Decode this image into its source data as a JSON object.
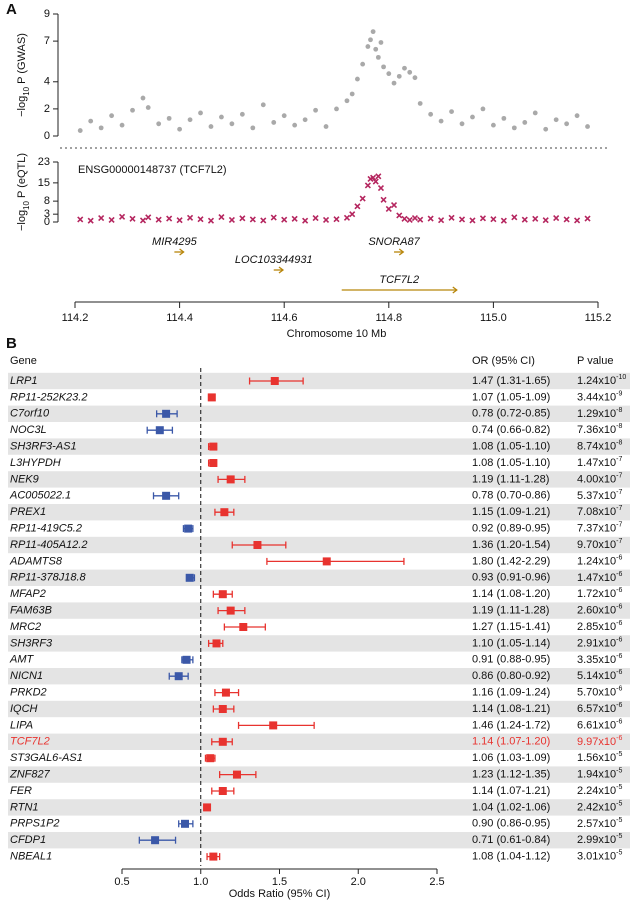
{
  "panel_a": {
    "label": "A",
    "gwas": {
      "type": "scatter",
      "ylabel_pre": "−log",
      "ylabel_sub": "10",
      "ylabel_post": " P (GWAS)",
      "color": "#a9a9a9",
      "ylim": [
        0,
        9
      ],
      "yticks": [
        0,
        2,
        4,
        7,
        9
      ],
      "x": [
        114.21,
        114.23,
        114.25,
        114.27,
        114.29,
        114.31,
        114.33,
        114.34,
        114.36,
        114.38,
        114.4,
        114.42,
        114.44,
        114.46,
        114.48,
        114.5,
        114.52,
        114.54,
        114.56,
        114.58,
        114.6,
        114.62,
        114.64,
        114.66,
        114.68,
        114.7,
        114.72,
        114.73,
        114.74,
        114.75,
        114.76,
        114.765,
        114.77,
        114.775,
        114.78,
        114.785,
        114.79,
        114.8,
        114.81,
        114.82,
        114.83,
        114.84,
        114.85,
        114.86,
        114.88,
        114.9,
        114.92,
        114.94,
        114.96,
        114.98,
        115.0,
        115.02,
        115.04,
        115.06,
        115.08,
        115.1,
        115.12,
        115.14,
        115.16,
        115.18
      ],
      "values": [
        0.4,
        1.1,
        0.6,
        1.5,
        0.8,
        1.9,
        2.8,
        2.1,
        0.9,
        1.3,
        0.5,
        1.2,
        1.7,
        0.7,
        1.4,
        0.9,
        1.6,
        0.6,
        2.3,
        1.0,
        1.5,
        0.8,
        1.2,
        1.9,
        0.7,
        2.0,
        2.6,
        3.1,
        4.2,
        5.3,
        6.6,
        7.1,
        7.7,
        6.4,
        5.8,
        6.9,
        5.1,
        4.6,
        3.9,
        4.4,
        5.0,
        4.7,
        4.3,
        2.4,
        1.6,
        1.1,
        1.8,
        0.9,
        1.4,
        2.0,
        0.8,
        1.3,
        0.6,
        1.0,
        1.7,
        0.5,
        1.2,
        0.9,
        1.5,
        0.7
      ]
    },
    "eqtl": {
      "type": "scatter",
      "title": "ENSG00000148737 (TCF7L2)",
      "ylabel_pre": "−log",
      "ylabel_sub": "10",
      "ylabel_post": " P (eQTL)",
      "color": "#b5265f",
      "ylim": [
        0,
        23
      ],
      "yticks": [
        0,
        3,
        8,
        15,
        23
      ],
      "x": [
        114.21,
        114.23,
        114.25,
        114.27,
        114.29,
        114.31,
        114.33,
        114.34,
        114.36,
        114.38,
        114.4,
        114.42,
        114.44,
        114.46,
        114.48,
        114.5,
        114.52,
        114.54,
        114.56,
        114.58,
        114.6,
        114.62,
        114.64,
        114.66,
        114.68,
        114.7,
        114.72,
        114.73,
        114.74,
        114.75,
        114.76,
        114.765,
        114.77,
        114.775,
        114.78,
        114.785,
        114.79,
        114.8,
        114.81,
        114.82,
        114.83,
        114.84,
        114.85,
        114.86,
        114.88,
        114.9,
        114.92,
        114.94,
        114.96,
        114.98,
        115.0,
        115.02,
        115.04,
        115.06,
        115.08,
        115.1,
        115.12,
        115.14,
        115.16,
        115.18
      ],
      "values": [
        1.0,
        0.5,
        1.5,
        0.8,
        2.0,
        1.2,
        0.6,
        1.8,
        0.9,
        1.3,
        0.7,
        1.6,
        1.1,
        0.5,
        1.9,
        0.8,
        1.4,
        1.0,
        0.6,
        1.7,
        0.9,
        1.2,
        0.5,
        1.5,
        0.8,
        1.1,
        1.6,
        3.0,
        6.0,
        9.0,
        14.0,
        16.5,
        17.0,
        15.5,
        17.5,
        13.0,
        8.5,
        5.0,
        6.5,
        2.5,
        1.2,
        0.8,
        1.5,
        0.9,
        1.3,
        0.7,
        1.6,
        1.0,
        0.6,
        1.4,
        1.1,
        0.5,
        1.8,
        0.9,
        1.2,
        0.7,
        1.5,
        1.0,
        0.6,
        1.3
      ]
    },
    "genes": [
      {
        "name": "MIR4295",
        "start": 114.39,
        "end": 114.4
      },
      {
        "name": "LOC103344931",
        "start": 114.58,
        "end": 114.59
      },
      {
        "name": "SNORA87",
        "start": 114.81,
        "end": 114.82
      },
      {
        "name": "TCF7L2",
        "start": 114.71,
        "end": 114.93
      }
    ],
    "gene_color": "#b8860b",
    "xlabel": "Chromosome 10 Mb",
    "xlim": [
      114.2,
      115.2
    ],
    "xticks": [
      114.2,
      114.4,
      114.6,
      114.8,
      {
        "value": 115.0,
        "label": "115.0"
      },
      115.2
    ]
  },
  "panel_b": {
    "label": "B",
    "type": "forest",
    "col_gene": "Gene",
    "col_or": "OR (95% CI)",
    "col_p": "P value",
    "xlabel": "Odds Ratio (95% CI)",
    "xlim": [
      0.5,
      2.5
    ],
    "refline": 1,
    "xticks": [
      0.5,
      {
        "value": 1,
        "label": "1.0"
      },
      1.5,
      {
        "value": 2,
        "label": "2.0"
      },
      2.5
    ],
    "highlight_color": "#e8332f",
    "rows": [
      {
        "gene": "LRP1",
        "or": 1.47,
        "ci": [
          1.31,
          1.65
        ],
        "or_label": "1.47 (1.31-1.65)",
        "p_label": "1.24x10",
        "p_exp": "-10",
        "color": "#e8332f"
      },
      {
        "gene": "RP11-252K23.2",
        "or": 1.07,
        "ci": [
          1.05,
          1.09
        ],
        "or_label": "1.07 (1.05-1.09)",
        "p_label": "3.44x10",
        "p_exp": "-9",
        "color": "#e8332f"
      },
      {
        "gene": "C7orf10",
        "or": 0.78,
        "ci": [
          0.72,
          0.85
        ],
        "or_label": "0.78 (0.72-0.85)",
        "p_label": "1.29x10",
        "p_exp": "-8",
        "color": "#3b58a8"
      },
      {
        "gene": "NOC3L",
        "or": 0.74,
        "ci": [
          0.66,
          0.82
        ],
        "or_label": "0.74 (0.66-0.82)",
        "p_label": "7.36x10",
        "p_exp": "-8",
        "color": "#3b58a8"
      },
      {
        "gene": "SH3RF3-AS1",
        "or": 1.08,
        "ci": [
          1.05,
          1.1
        ],
        "or_label": "1.08 (1.05-1.10)",
        "p_label": "8.74x10",
        "p_exp": "-8",
        "color": "#e8332f"
      },
      {
        "gene": "L3HYPDH",
        "or": 1.08,
        "ci": [
          1.05,
          1.1
        ],
        "or_label": "1.08 (1.05-1.10)",
        "p_label": "1.47x10",
        "p_exp": "-7",
        "color": "#e8332f"
      },
      {
        "gene": "NEK9",
        "or": 1.19,
        "ci": [
          1.11,
          1.28
        ],
        "or_label": "1.19 (1.11-1.28)",
        "p_label": "4.00x10",
        "p_exp": "-7",
        "color": "#e8332f"
      },
      {
        "gene": "AC005022.1",
        "or": 0.78,
        "ci": [
          0.7,
          0.86
        ],
        "or_label": "0.78 (0.70-0.86)",
        "p_label": "5.37x10",
        "p_exp": "-7",
        "color": "#3b58a8"
      },
      {
        "gene": "PREX1",
        "or": 1.15,
        "ci": [
          1.09,
          1.21
        ],
        "or_label": "1.15 (1.09-1.21)",
        "p_label": "7.08x10",
        "p_exp": "-7",
        "color": "#e8332f"
      },
      {
        "gene": "RP11-419C5.2",
        "or": 0.92,
        "ci": [
          0.89,
          0.95
        ],
        "or_label": "0.92 (0.89-0.95)",
        "p_label": "7.37x10",
        "p_exp": "-7",
        "color": "#3b58a8"
      },
      {
        "gene": "RP11-405A12.2",
        "or": 1.36,
        "ci": [
          1.2,
          1.54
        ],
        "or_label": "1.36 (1.20-1.54)",
        "p_label": "9.70x10",
        "p_exp": "-7",
        "color": "#e8332f"
      },
      {
        "gene": "ADAMTS8",
        "or": 1.8,
        "ci": [
          1.42,
          2.29
        ],
        "or_label": "1.80 (1.42-2.29)",
        "p_label": "1.24x10",
        "p_exp": "-6",
        "color": "#e8332f"
      },
      {
        "gene": "RP11-378J18.8",
        "or": 0.93,
        "ci": [
          0.91,
          0.96
        ],
        "or_label": "0.93 (0.91-0.96)",
        "p_label": "1.47x10",
        "p_exp": "-6",
        "color": "#3b58a8"
      },
      {
        "gene": "MFAP2",
        "or": 1.14,
        "ci": [
          1.08,
          1.2
        ],
        "or_label": "1.14 (1.08-1.20)",
        "p_label": "1.72x10",
        "p_exp": "-6",
        "color": "#e8332f"
      },
      {
        "gene": "FAM63B",
        "or": 1.19,
        "ci": [
          1.11,
          1.28
        ],
        "or_label": "1.19 (1.11-1.28)",
        "p_label": "2.60x10",
        "p_exp": "-6",
        "color": "#e8332f"
      },
      {
        "gene": "MRC2",
        "or": 1.27,
        "ci": [
          1.15,
          1.41
        ],
        "or_label": "1.27 (1.15-1.41)",
        "p_label": "2.85x10",
        "p_exp": "-6",
        "color": "#e8332f"
      },
      {
        "gene": "SH3RF3",
        "or": 1.1,
        "ci": [
          1.05,
          1.14
        ],
        "or_label": "1.10 (1.05-1.14)",
        "p_label": "2.91x10",
        "p_exp": "-6",
        "color": "#e8332f"
      },
      {
        "gene": "AMT",
        "or": 0.91,
        "ci": [
          0.88,
          0.95
        ],
        "or_label": "0.91 (0.88-0.95)",
        "p_label": "3.35x10",
        "p_exp": "-6",
        "color": "#3b58a8"
      },
      {
        "gene": "NICN1",
        "or": 0.86,
        "ci": [
          0.8,
          0.92
        ],
        "or_label": "0.86 (0.80-0.92)",
        "p_label": "5.14x10",
        "p_exp": "-6",
        "color": "#3b58a8"
      },
      {
        "gene": "PRKD2",
        "or": 1.16,
        "ci": [
          1.09,
          1.24
        ],
        "or_label": "1.16 (1.09-1.24)",
        "p_label": "5.70x10",
        "p_exp": "-6",
        "color": "#e8332f"
      },
      {
        "gene": "IQCH",
        "or": 1.14,
        "ci": [
          1.08,
          1.21
        ],
        "or_label": "1.14 (1.08-1.21)",
        "p_label": "6.57x10",
        "p_exp": "-6",
        "color": "#e8332f"
      },
      {
        "gene": "LIPA",
        "or": 1.46,
        "ci": [
          1.24,
          1.72
        ],
        "or_label": "1.46 (1.24-1.72)",
        "p_label": "6.61x10",
        "p_exp": "-6",
        "color": "#e8332f"
      },
      {
        "gene": "TCF7L2",
        "or": 1.14,
        "ci": [
          1.07,
          1.2
        ],
        "or_label": "1.14 (1.07-1.20)",
        "p_label": "9.97x10",
        "p_exp": "-6",
        "color": "#e8332f",
        "highlight": true
      },
      {
        "gene": "ST3GAL6-AS1",
        "or": 1.06,
        "ci": [
          1.03,
          1.09
        ],
        "or_label": "1.06 (1.03-1.09)",
        "p_label": "1.56x10",
        "p_exp": "-5",
        "color": "#e8332f"
      },
      {
        "gene": "ZNF827",
        "or": 1.23,
        "ci": [
          1.12,
          1.35
        ],
        "or_label": "1.23 (1.12-1.35)",
        "p_label": "1.94x10",
        "p_exp": "-5",
        "color": "#e8332f"
      },
      {
        "gene": "FER",
        "or": 1.14,
        "ci": [
          1.07,
          1.21
        ],
        "or_label": "1.14 (1.07-1.21)",
        "p_label": "2.24x10",
        "p_exp": "-5",
        "color": "#e8332f"
      },
      {
        "gene": "RTN1",
        "or": 1.04,
        "ci": [
          1.02,
          1.06
        ],
        "or_label": "1.04 (1.02-1.06)",
        "p_label": "2.42x10",
        "p_exp": "-5",
        "color": "#e8332f"
      },
      {
        "gene": "PRPS1P2",
        "or": 0.9,
        "ci": [
          0.86,
          0.95
        ],
        "or_label": "0.90 (0.86-0.95)",
        "p_label": "2.57x10",
        "p_exp": "-5",
        "color": "#3b58a8"
      },
      {
        "gene": "CFDP1",
        "or": 0.71,
        "ci": [
          0.61,
          0.84
        ],
        "or_label": "0.71 (0.61-0.84)",
        "p_label": "2.99x10",
        "p_exp": "-5",
        "color": "#3b58a8"
      },
      {
        "gene": "NBEAL1",
        "or": 1.08,
        "ci": [
          1.04,
          1.12
        ],
        "or_label": "1.08 (1.04-1.12)",
        "p_label": "3.01x10",
        "p_exp": "-5",
        "color": "#e8332f"
      }
    ]
  }
}
